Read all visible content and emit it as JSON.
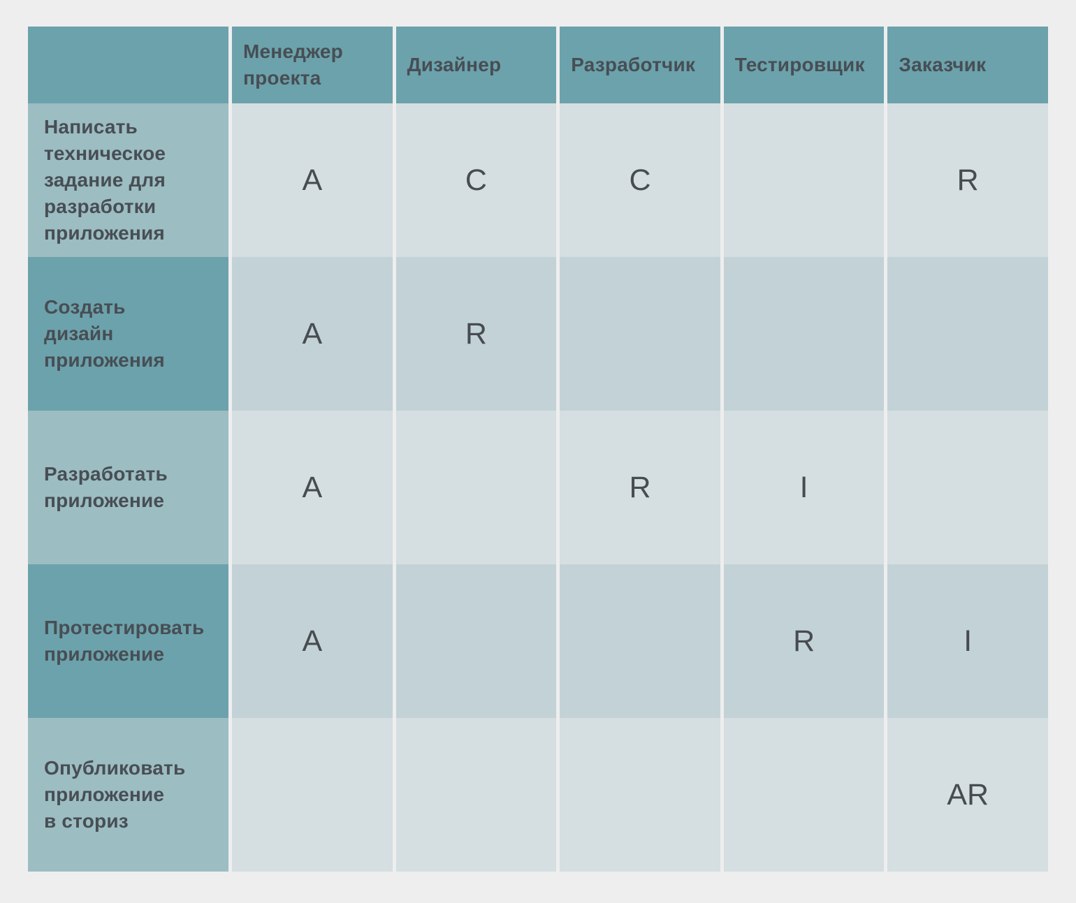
{
  "colors": {
    "page_bg": "#eeeeee",
    "header_bg": "#6ca2ac",
    "task_light_bg": "#9cbdc2",
    "task_dark_bg": "#6ca2ac",
    "cell_light_bg": "#d5dee1",
    "cell_mid_bg": "#c3d2d6",
    "label_text": "#474e54",
    "letter_text": "#474c50"
  },
  "matrix": {
    "corner_label": "",
    "roles": [
      "Менеджер\nпроекта",
      "Дизайнер",
      "Разработчик",
      "Тестировщик",
      "Заказчик"
    ],
    "tasks": [
      {
        "label": "Написать\nтехническое\nзадание для\nразработки\nприложения",
        "assignments": [
          "A",
          "C",
          "C",
          "",
          "R"
        ]
      },
      {
        "label": "Создать\nдизайн\nприложения",
        "assignments": [
          "A",
          "R",
          "",
          "",
          ""
        ]
      },
      {
        "label": "Разработать\nприложение",
        "assignments": [
          "A",
          "",
          "R",
          "I",
          ""
        ]
      },
      {
        "label": "Протестировать\nприложение",
        "assignments": [
          "A",
          "",
          "",
          "R",
          "I"
        ]
      },
      {
        "label": "Опубликовать\nприложение\nв сториз",
        "assignments": [
          "",
          "",
          "",
          "",
          "AR"
        ]
      }
    ]
  }
}
